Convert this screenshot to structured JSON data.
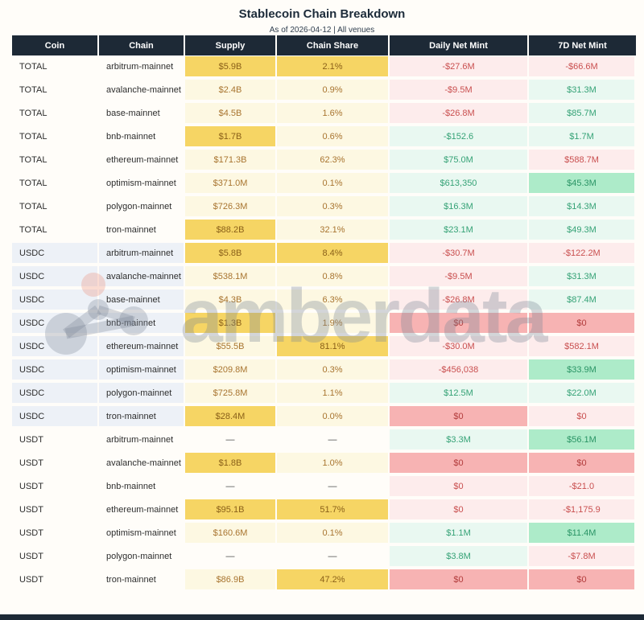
{
  "title": "Stablecoin Chain Breakdown",
  "subtitle": "As of 2026-04-12 | All venues",
  "watermark": {
    "text": "amberdata",
    "logo": "amberdata-molecule-logo"
  },
  "colors": {
    "header_bg": "#1d2936",
    "header_text": "#ffffff",
    "footer_bar": "#1d2936",
    "yellow_highlight": "#f6d564",
    "yellow_light": "#fdf8e2",
    "pink_light": "#fdecec",
    "pink_strong": "#f7b3b3",
    "green_light": "#e9f8f1",
    "green_strong": "#adebc9",
    "amber_text": "#a8742f",
    "red_text": "#c94f4f",
    "green_text": "#35a276",
    "usdc_row_bg": "#edf1f7"
  },
  "chart_data": {
    "type": "table",
    "title": "Stablecoin Chain Breakdown",
    "subtitle": "As of 2026-04-12 | All venues",
    "columns": [
      "Coin",
      "Chain",
      "Supply",
      "Chain Share",
      "Daily Net Mint",
      "7D Net Mint"
    ],
    "rows": [
      {
        "coin": "TOTAL",
        "chain": "arbitrum-mainnet",
        "supply": "$5.9B",
        "supply_hl": "dark",
        "share": "2.1%",
        "share_hl": "dark",
        "daily": "-$27.6M",
        "daily_style": "pink",
        "d7": "-$66.6M",
        "d7_style": "pink"
      },
      {
        "coin": "TOTAL",
        "chain": "avalanche-mainnet",
        "supply": "$2.4B",
        "supply_hl": "light",
        "share": "0.9%",
        "share_hl": "light",
        "daily": "-$9.5M",
        "daily_style": "pink",
        "d7": "$31.3M",
        "d7_style": "green"
      },
      {
        "coin": "TOTAL",
        "chain": "base-mainnet",
        "supply": "$4.5B",
        "supply_hl": "light",
        "share": "1.6%",
        "share_hl": "light",
        "daily": "-$26.8M",
        "daily_style": "pink",
        "d7": "$85.7M",
        "d7_style": "green"
      },
      {
        "coin": "TOTAL",
        "chain": "bnb-mainnet",
        "supply": "$1.7B",
        "supply_hl": "dark",
        "share": "0.6%",
        "share_hl": "light",
        "daily": "-$152.6",
        "daily_style": "green",
        "d7": "$1.7M",
        "d7_style": "green"
      },
      {
        "coin": "TOTAL",
        "chain": "ethereum-mainnet",
        "supply": "$171.3B",
        "supply_hl": "light",
        "share": "62.3%",
        "share_hl": "light",
        "daily": "$75.0M",
        "daily_style": "green",
        "d7": "$588.7M",
        "d7_style": "pink"
      },
      {
        "coin": "TOTAL",
        "chain": "optimism-mainnet",
        "supply": "$371.0M",
        "supply_hl": "light",
        "share": "0.1%",
        "share_hl": "light",
        "daily": "$613,350",
        "daily_style": "green",
        "d7": "$45.3M",
        "d7_style": "green-strong"
      },
      {
        "coin": "TOTAL",
        "chain": "polygon-mainnet",
        "supply": "$726.3M",
        "supply_hl": "light",
        "share": "0.3%",
        "share_hl": "light",
        "daily": "$16.3M",
        "daily_style": "green",
        "d7": "$14.3M",
        "d7_style": "green"
      },
      {
        "coin": "TOTAL",
        "chain": "tron-mainnet",
        "supply": "$88.2B",
        "supply_hl": "dark",
        "share": "32.1%",
        "share_hl": "light",
        "daily": "$23.1M",
        "daily_style": "green",
        "d7": "$49.3M",
        "d7_style": "green"
      },
      {
        "coin": "USDC",
        "chain": "arbitrum-mainnet",
        "supply": "$5.8B",
        "supply_hl": "dark",
        "share": "8.4%",
        "share_hl": "dark",
        "daily": "-$30.7M",
        "daily_style": "pink",
        "d7": "-$122.2M",
        "d7_style": "pink"
      },
      {
        "coin": "USDC",
        "chain": "avalanche-mainnet",
        "supply": "$538.1M",
        "supply_hl": "light",
        "share": "0.8%",
        "share_hl": "light",
        "daily": "-$9.5M",
        "daily_style": "pink",
        "d7": "$31.3M",
        "d7_style": "green"
      },
      {
        "coin": "USDC",
        "chain": "base-mainnet",
        "supply": "$4.3B",
        "supply_hl": "light",
        "share": "6.3%",
        "share_hl": "light",
        "daily": "-$26.8M",
        "daily_style": "pink",
        "d7": "$87.4M",
        "d7_style": "green"
      },
      {
        "coin": "USDC",
        "chain": "bnb-mainnet",
        "supply": "$1.3B",
        "supply_hl": "dark",
        "share": "1.9%",
        "share_hl": "light",
        "daily": "$0",
        "daily_style": "pink-strong",
        "d7": "$0",
        "d7_style": "pink-strong"
      },
      {
        "coin": "USDC",
        "chain": "ethereum-mainnet",
        "supply": "$55.5B",
        "supply_hl": "light",
        "share": "81.1%",
        "share_hl": "dark",
        "daily": "-$30.0M",
        "daily_style": "pink",
        "d7": "$582.1M",
        "d7_style": "pink"
      },
      {
        "coin": "USDC",
        "chain": "optimism-mainnet",
        "supply": "$209.8M",
        "supply_hl": "light",
        "share": "0.3%",
        "share_hl": "light",
        "daily": "-$456,038",
        "daily_style": "pink",
        "d7": "$33.9M",
        "d7_style": "green-strong"
      },
      {
        "coin": "USDC",
        "chain": "polygon-mainnet",
        "supply": "$725.8M",
        "supply_hl": "light",
        "share": "1.1%",
        "share_hl": "light",
        "daily": "$12.5M",
        "daily_style": "green",
        "d7": "$22.0M",
        "d7_style": "green"
      },
      {
        "coin": "USDC",
        "chain": "tron-mainnet",
        "supply": "$28.4M",
        "supply_hl": "dark",
        "share": "0.0%",
        "share_hl": "light",
        "daily": "$0",
        "daily_style": "pink-strong",
        "d7": "$0",
        "d7_style": "pink"
      },
      {
        "coin": "USDT",
        "chain": "arbitrum-mainnet",
        "supply": "—",
        "supply_hl": "none",
        "share": "—",
        "share_hl": "none",
        "daily": "$3.3M",
        "daily_style": "green",
        "d7": "$56.1M",
        "d7_style": "green-strong"
      },
      {
        "coin": "USDT",
        "chain": "avalanche-mainnet",
        "supply": "$1.8B",
        "supply_hl": "dark",
        "share": "1.0%",
        "share_hl": "light",
        "daily": "$0",
        "daily_style": "pink-strong",
        "d7": "$0",
        "d7_style": "pink-strong"
      },
      {
        "coin": "USDT",
        "chain": "bnb-mainnet",
        "supply": "—",
        "supply_hl": "none",
        "share": "—",
        "share_hl": "none",
        "daily": "$0",
        "daily_style": "pink",
        "d7": "-$21.0",
        "d7_style": "pink"
      },
      {
        "coin": "USDT",
        "chain": "ethereum-mainnet",
        "supply": "$95.1B",
        "supply_hl": "dark",
        "share": "51.7%",
        "share_hl": "dark",
        "daily": "$0",
        "daily_style": "pink",
        "d7": "-$1,175.9",
        "d7_style": "pink"
      },
      {
        "coin": "USDT",
        "chain": "optimism-mainnet",
        "supply": "$160.6M",
        "supply_hl": "light",
        "share": "0.1%",
        "share_hl": "light",
        "daily": "$1.1M",
        "daily_style": "green",
        "d7": "$11.4M",
        "d7_style": "green-strong"
      },
      {
        "coin": "USDT",
        "chain": "polygon-mainnet",
        "supply": "—",
        "supply_hl": "none",
        "share": "—",
        "share_hl": "none",
        "daily": "$3.8M",
        "daily_style": "green",
        "d7": "-$7.8M",
        "d7_style": "pink"
      },
      {
        "coin": "USDT",
        "chain": "tron-mainnet",
        "supply": "$86.9B",
        "supply_hl": "light",
        "share": "47.2%",
        "share_hl": "dark",
        "daily": "$0",
        "daily_style": "pink-strong",
        "d7": "$0",
        "d7_style": "pink-strong"
      }
    ]
  }
}
